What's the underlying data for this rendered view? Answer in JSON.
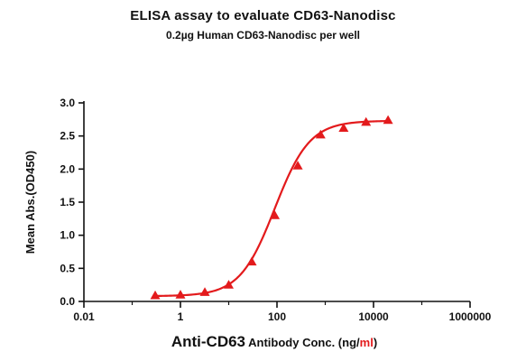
{
  "chart_data": {
    "type": "scatter",
    "title": "ELISA assay to evaluate CD63-Nanodisc",
    "subtitle": "0.2µg Human CD63-Nanodisc per well",
    "xlabel": {
      "part1": "Anti-CD63",
      "part2": " Antibody Conc. (ng/",
      "part3": "ml",
      "part4": ")"
    },
    "ylabel": "Mean Abs.(OD450)",
    "xscale": "log",
    "xlim": [
      0.01,
      1000000
    ],
    "ylim": [
      0,
      3.0
    ],
    "xticks": [
      0.01,
      1,
      100,
      10000,
      1000000
    ],
    "xtick_labels": [
      "0.01",
      "1",
      "100",
      "10000",
      "1000000"
    ],
    "yticks": [
      0.0,
      0.5,
      1.0,
      1.5,
      2.0,
      2.5,
      3.0
    ],
    "ytick_labels": [
      "0.0",
      "0.5",
      "1.0",
      "1.5",
      "2.0",
      "2.5",
      "3.0"
    ],
    "series": [
      {
        "marker": "triangle",
        "color": "#e31a1c",
        "x": [
          0.3,
          1,
          3.2,
          10,
          30,
          90,
          270,
          800,
          2400,
          7000,
          20000
        ],
        "y": [
          0.09,
          0.1,
          0.14,
          0.25,
          0.6,
          1.3,
          2.05,
          2.52,
          2.62,
          2.71,
          2.74
        ],
        "fit": {
          "model": "4PL",
          "bottom": 0.08,
          "top": 2.73,
          "ec50": 90,
          "hill": 1.2
        }
      }
    ],
    "grid": false,
    "legend": "none"
  }
}
